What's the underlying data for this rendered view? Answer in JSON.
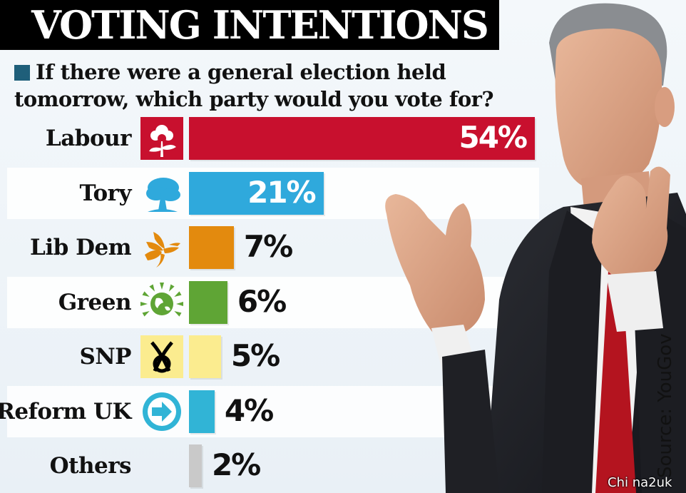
{
  "title": "VOTING INTENTIONS",
  "question": "If there were a general election held tomorrow, which party would you vote for?",
  "source": "Source: YouGov",
  "watermark": "Chi na2uk",
  "colors": {
    "Labour": "#c8102e",
    "Tory": "#2fa9dc",
    "Lib Dem": "#e38a0e",
    "Green": "#5fa535",
    "SNP": "#fbec8f",
    "Reform UK": "#31b4d6",
    "Others": "#c9c9c9"
  },
  "chart_data": {
    "type": "bar",
    "orientation": "horizontal",
    "title": "VOTING INTENTIONS",
    "subtitle": "If there were a general election held tomorrow, which party would you vote for?",
    "categories": [
      "Labour",
      "Tory",
      "Lib Dem",
      "Green",
      "SNP",
      "Reform UK",
      "Others"
    ],
    "values": [
      54,
      21,
      7,
      6,
      5,
      4,
      2
    ],
    "data_labels": [
      "54%",
      "21%",
      "7%",
      "6%",
      "5%",
      "4%",
      "2%"
    ],
    "unit": "%",
    "xlim": [
      0,
      54
    ],
    "grid": false,
    "legend": "none",
    "icons": [
      "rose-icon",
      "oak-tree-icon",
      "bird-of-liberty-icon",
      "globe-leaves-icon",
      "snp-ribbon-icon",
      "arrow-icon",
      ""
    ]
  }
}
